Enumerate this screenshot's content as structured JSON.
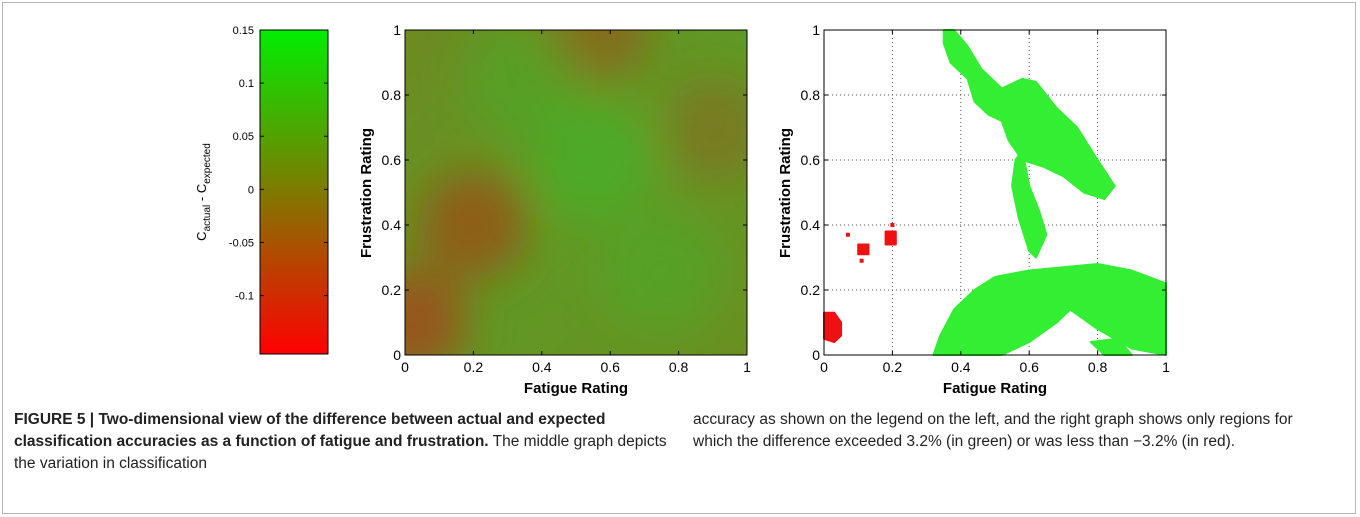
{
  "figure": {
    "label": "FIGURE 5 |",
    "title": "Two-dimensional view of the difference between actual and expected classification accuracies as a function of fatigue and frustration.",
    "caption_text_1": "The middle graph depicts the variation in classification",
    "caption_text_2": "accuracy as shown on the legend on the left, and the right graph shows only regions for which the difference exceeded 3.2% (in green) or was less than −3.2% (in red)."
  },
  "colorbar": {
    "label_main": "C",
    "label_sub_1": "actual",
    "label_dash": " - C",
    "label_sub_2": "expected",
    "ticks": [
      "0.15",
      "0.1",
      "0.05",
      "0",
      "-0.05",
      "-0.1"
    ],
    "tick_values": [
      0.15,
      0.1,
      0.05,
      0,
      -0.05,
      -0.1
    ],
    "range": [
      -0.155,
      0.15
    ],
    "color_high": "#00ee00",
    "color_low": "#ff0000"
  },
  "chart_data": [
    {
      "type": "heatmap",
      "title": "",
      "xlabel": "Fatigue Rating",
      "ylabel": "Frustration Rating",
      "xlim": [
        0,
        1
      ],
      "ylim": [
        0,
        1
      ],
      "xticks": [
        "0",
        "0.2",
        "0.4",
        "0.6",
        "0.8",
        "1"
      ],
      "yticks": [
        "0",
        "0.2",
        "0.4",
        "0.6",
        "0.8",
        "1"
      ],
      "grid": false,
      "values_description": "C_actual - C_expected, range approx -0.05 to 0.05, lowest near (0.05,0.1) and (0.2,0.4)",
      "low_regions": [
        {
          "x": 0.02,
          "y": 0.1,
          "value": -0.05
        },
        {
          "x": 0.2,
          "y": 0.4,
          "value": -0.04
        },
        {
          "x": 0.55,
          "y": 1.0,
          "value": -0.03
        },
        {
          "x": 0.9,
          "y": 0.7,
          "value": -0.02
        }
      ],
      "high_regions": [
        {
          "x": 0.55,
          "y": 0.6,
          "value": 0.03
        },
        {
          "x": 0.35,
          "y": 0.85,
          "value": 0.02
        },
        {
          "x": 0.75,
          "y": 0.25,
          "value": 0.02
        }
      ]
    },
    {
      "type": "scatter",
      "title": "",
      "xlabel": "Fatigue Rating",
      "ylabel": "Frustration Rating",
      "xlim": [
        0,
        1
      ],
      "ylim": [
        0,
        1
      ],
      "xticks": [
        "0",
        "0.2",
        "0.4",
        "0.6",
        "0.8",
        "1"
      ],
      "yticks": [
        "0",
        "0.2",
        "0.4",
        "0.6",
        "0.8",
        "1"
      ],
      "grid": true,
      "series": [
        {
          "color": "#33ee33",
          "regions": [
            [
              [
                0.35,
                1.0
              ],
              [
                0.38,
                1.0
              ],
              [
                0.42,
                0.95
              ],
              [
                0.46,
                0.88
              ],
              [
                0.52,
                0.82
              ],
              [
                0.58,
                0.85
              ],
              [
                0.62,
                0.84
              ],
              [
                0.68,
                0.76
              ],
              [
                0.74,
                0.7
              ],
              [
                0.8,
                0.6
              ],
              [
                0.85,
                0.52
              ],
              [
                0.82,
                0.48
              ],
              [
                0.76,
                0.5
              ],
              [
                0.7,
                0.55
              ],
              [
                0.64,
                0.58
              ],
              [
                0.58,
                0.6
              ],
              [
                0.54,
                0.66
              ],
              [
                0.52,
                0.72
              ],
              [
                0.48,
                0.74
              ],
              [
                0.44,
                0.78
              ],
              [
                0.42,
                0.85
              ],
              [
                0.37,
                0.9
              ],
              [
                0.35,
                0.96
              ]
            ],
            [
              [
                0.53,
                0.78
              ],
              [
                0.57,
                0.8
              ],
              [
                0.6,
                0.78
              ],
              [
                0.56,
                0.74
              ]
            ],
            [
              [
                0.58,
                0.63
              ],
              [
                0.6,
                0.52
              ],
              [
                0.63,
                0.44
              ],
              [
                0.65,
                0.37
              ],
              [
                0.62,
                0.3
              ],
              [
                0.6,
                0.32
              ],
              [
                0.57,
                0.42
              ],
              [
                0.55,
                0.52
              ],
              [
                0.56,
                0.6
              ]
            ],
            [
              [
                0.32,
                0.0
              ],
              [
                0.34,
                0.06
              ],
              [
                0.38,
                0.14
              ],
              [
                0.44,
                0.2
              ],
              [
                0.5,
                0.24
              ],
              [
                0.6,
                0.26
              ],
              [
                0.7,
                0.27
              ],
              [
                0.8,
                0.28
              ],
              [
                0.9,
                0.26
              ],
              [
                1.0,
                0.22
              ],
              [
                1.0,
                0.0
              ],
              [
                0.9,
                0.02
              ],
              [
                0.8,
                0.08
              ],
              [
                0.72,
                0.14
              ],
              [
                0.68,
                0.1
              ],
              [
                0.6,
                0.04
              ],
              [
                0.52,
                0.0
              ]
            ],
            [
              [
                0.78,
                0.04
              ],
              [
                0.82,
                0.0
              ],
              [
                0.9,
                0.0
              ],
              [
                0.86,
                0.05
              ]
            ]
          ]
        },
        {
          "color": "#ee1111",
          "regions": [
            [
              [
                0.0,
                0.13
              ],
              [
                0.03,
                0.13
              ],
              [
                0.05,
                0.1
              ],
              [
                0.05,
                0.06
              ],
              [
                0.03,
                0.04
              ],
              [
                0.0,
                0.05
              ]
            ],
            [
              [
                0.1,
                0.34
              ],
              [
                0.13,
                0.34
              ],
              [
                0.13,
                0.31
              ],
              [
                0.1,
                0.31
              ]
            ],
            [
              [
                0.18,
                0.38
              ],
              [
                0.21,
                0.38
              ],
              [
                0.21,
                0.34
              ],
              [
                0.18,
                0.34
              ]
            ]
          ],
          "points": [
            [
              0.07,
              0.37
            ],
            [
              0.2,
              0.4
            ],
            [
              0.11,
              0.29
            ]
          ]
        }
      ]
    }
  ]
}
